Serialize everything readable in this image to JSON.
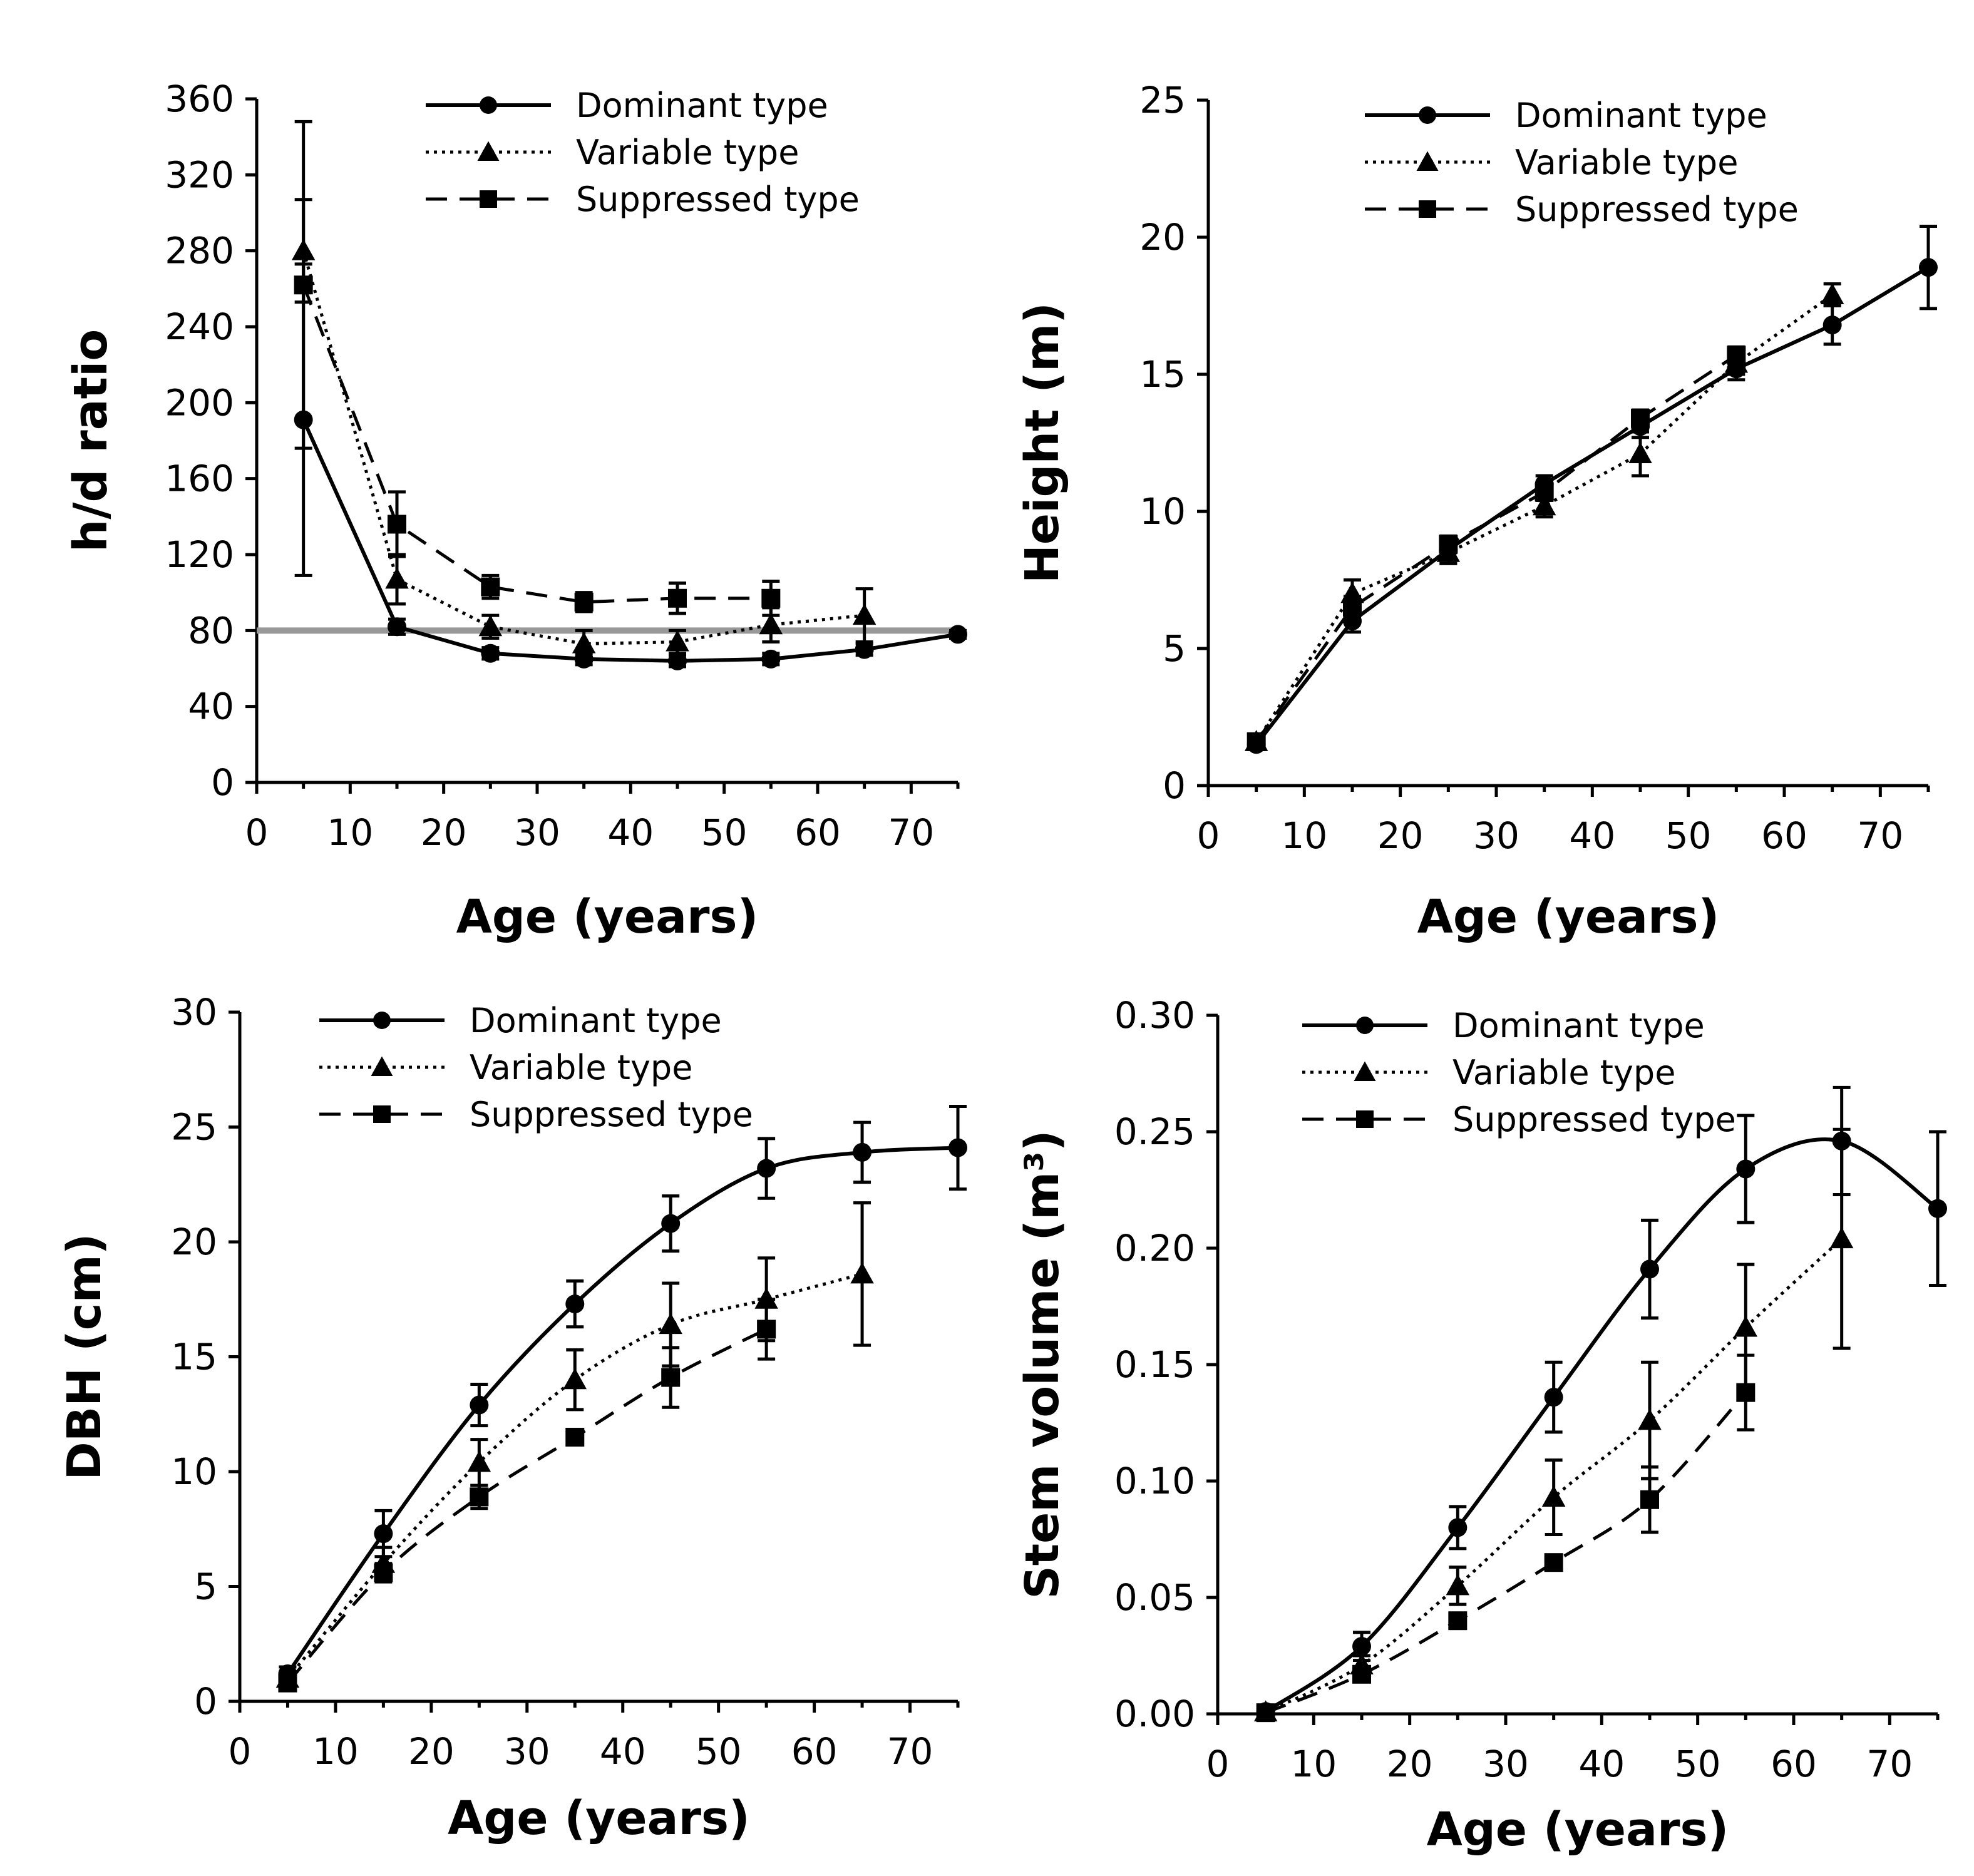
{
  "figure": {
    "legend_entries": [
      "Dominant type",
      "Variable type",
      "Suppressed type"
    ]
  },
  "chart_data": [
    {
      "type": "line",
      "panel": "top-left",
      "title": "",
      "xlabel": "Age (years)",
      "ylabel": "h/d ratio",
      "xlim": [
        0,
        75
      ],
      "ylim": [
        0,
        360
      ],
      "xticks": [
        0,
        10,
        20,
        30,
        40,
        50,
        60,
        70
      ],
      "yticks": [
        0,
        40,
        80,
        120,
        160,
        200,
        240,
        280,
        320,
        360
      ],
      "ytick_decimals": 0,
      "legend_position": "top-center",
      "reference_line": {
        "y": 80,
        "color": "#999999"
      },
      "series": [
        {
          "name": "Dominant type",
          "marker": "circle",
          "style": "solid",
          "smooth": false,
          "x": [
            5,
            15,
            25,
            35,
            45,
            55,
            65,
            75
          ],
          "y": [
            191,
            82,
            68,
            65,
            64,
            65,
            70,
            78
          ],
          "err": [
            82,
            4,
            3,
            3,
            3,
            3,
            3,
            2
          ]
        },
        {
          "name": "Variable type",
          "marker": "triangle",
          "style": "dotted",
          "smooth": false,
          "x": [
            5,
            15,
            25,
            35,
            45,
            55,
            65
          ],
          "y": [
            280,
            107,
            82,
            73,
            74,
            83,
            88
          ],
          "err": [
            27,
            13,
            6,
            7,
            6,
            9,
            14
          ]
        },
        {
          "name": "Suppressed type",
          "marker": "square",
          "style": "dashed",
          "smooth": false,
          "x": [
            5,
            15,
            25,
            35,
            45,
            55
          ],
          "y": [
            262,
            136,
            103,
            95,
            97,
            97
          ],
          "err": [
            86,
            17,
            6,
            5,
            8,
            9
          ]
        }
      ]
    },
    {
      "type": "line",
      "panel": "top-right",
      "title": "",
      "xlabel": "Age (years)",
      "ylabel": "Height (m)",
      "xlim": [
        0,
        75
      ],
      "ylim": [
        0,
        25
      ],
      "xticks": [
        0,
        10,
        20,
        30,
        40,
        50,
        60,
        70
      ],
      "yticks": [
        0,
        5,
        10,
        15,
        20,
        25
      ],
      "ytick_decimals": 0,
      "legend_position": "top-center",
      "series": [
        {
          "name": "Dominant type",
          "marker": "circle",
          "style": "solid",
          "smooth": false,
          "x": [
            5,
            15,
            25,
            35,
            45,
            55,
            65,
            75
          ],
          "y": [
            1.5,
            6.0,
            8.6,
            11.0,
            13.1,
            15.2,
            16.8,
            18.9
          ],
          "err": [
            0.15,
            0.4,
            0.5,
            0.3,
            0.4,
            0.4,
            0.7,
            1.5
          ]
        },
        {
          "name": "Variable type",
          "marker": "triangle",
          "style": "dotted",
          "smooth": false,
          "x": [
            5,
            15,
            25,
            35,
            45,
            55,
            65
          ],
          "y": [
            1.6,
            7.0,
            8.5,
            10.2,
            12.1,
            15.4,
            17.9
          ],
          "err": [
            0.2,
            0.5,
            0.4,
            0.4,
            0.8,
            0.4,
            0.4
          ]
        },
        {
          "name": "Suppressed type",
          "marker": "square",
          "style": "dashed",
          "smooth": false,
          "x": [
            5,
            15,
            25,
            35,
            45,
            55
          ],
          "y": [
            1.6,
            6.5,
            8.8,
            10.7,
            13.4,
            15.7
          ],
          "err": [
            0.15,
            0.4,
            0.3,
            0.3,
            0.3,
            0.3
          ]
        }
      ]
    },
    {
      "type": "line",
      "panel": "bottom-left",
      "title": "",
      "xlabel": "Age (years)",
      "ylabel": "DBH (cm)",
      "xlim": [
        0,
        75
      ],
      "ylim": [
        0,
        30
      ],
      "xticks": [
        0,
        10,
        20,
        30,
        40,
        50,
        60,
        70
      ],
      "yticks": [
        0,
        5,
        10,
        15,
        20,
        25,
        30
      ],
      "ytick_decimals": 0,
      "legend_position": "top-center",
      "series": [
        {
          "name": "Dominant type",
          "marker": "circle",
          "style": "solid",
          "smooth": true,
          "x": [
            5,
            15,
            25,
            35,
            45,
            55,
            65,
            75
          ],
          "y": [
            1.2,
            7.3,
            12.9,
            17.3,
            20.8,
            23.2,
            23.9,
            24.1
          ],
          "err": [
            0.3,
            1.0,
            0.9,
            1.0,
            1.2,
            1.3,
            1.3,
            1.8
          ]
        },
        {
          "name": "Variable type",
          "marker": "triangle",
          "style": "dotted",
          "smooth": true,
          "x": [
            5,
            15,
            25,
            35,
            45,
            55,
            65
          ],
          "y": [
            1.0,
            6.0,
            10.4,
            14.0,
            16.4,
            17.5,
            18.6
          ],
          "err": [
            0.2,
            0.7,
            1.0,
            1.3,
            1.8,
            1.8,
            3.1
          ]
        },
        {
          "name": "Suppressed type",
          "marker": "square",
          "style": "dashed",
          "smooth": true,
          "x": [
            5,
            15,
            25,
            35,
            45,
            55
          ],
          "y": [
            0.8,
            5.6,
            8.9,
            11.5,
            14.1,
            16.2
          ],
          "err": [
            0.2,
            0.4,
            0.5,
            0.3,
            1.3,
            1.3
          ]
        }
      ]
    },
    {
      "type": "line",
      "panel": "bottom-right",
      "title": "",
      "xlabel": "Age (years)",
      "ylabel": "Stem volume (m³)",
      "xlim": [
        0,
        75
      ],
      "ylim": [
        0,
        0.3
      ],
      "xticks": [
        0,
        10,
        20,
        30,
        40,
        50,
        60,
        70
      ],
      "yticks": [
        0,
        0.05,
        0.1,
        0.15,
        0.2,
        0.25,
        0.3
      ],
      "ytick_decimals": 2,
      "legend_position": "top-center",
      "series": [
        {
          "name": "Dominant type",
          "marker": "circle",
          "style": "solid",
          "smooth": true,
          "x": [
            5,
            15,
            25,
            35,
            45,
            55,
            65,
            75
          ],
          "y": [
            0.001,
            0.029,
            0.08,
            0.136,
            0.191,
            0.234,
            0.246,
            0.217
          ],
          "err": [
            0.0005,
            0.006,
            0.009,
            0.015,
            0.021,
            0.023,
            0.023,
            0.033
          ]
        },
        {
          "name": "Variable type",
          "marker": "triangle",
          "style": "dotted",
          "smooth": true,
          "x": [
            5,
            15,
            25,
            35,
            45,
            55,
            65
          ],
          "y": [
            0.0008,
            0.021,
            0.055,
            0.093,
            0.126,
            0.166,
            0.204
          ],
          "err": [
            0.0004,
            0.004,
            0.008,
            0.016,
            0.025,
            0.027,
            0.047
          ]
        },
        {
          "name": "Suppressed type",
          "marker": "square",
          "style": "dashed",
          "smooth": true,
          "x": [
            5,
            15,
            25,
            35,
            45,
            55
          ],
          "y": [
            0.0005,
            0.017,
            0.04,
            0.065,
            0.092,
            0.138
          ],
          "err": [
            0.0003,
            0.002,
            0.003,
            0.003,
            0.014,
            0.016
          ]
        }
      ]
    }
  ]
}
